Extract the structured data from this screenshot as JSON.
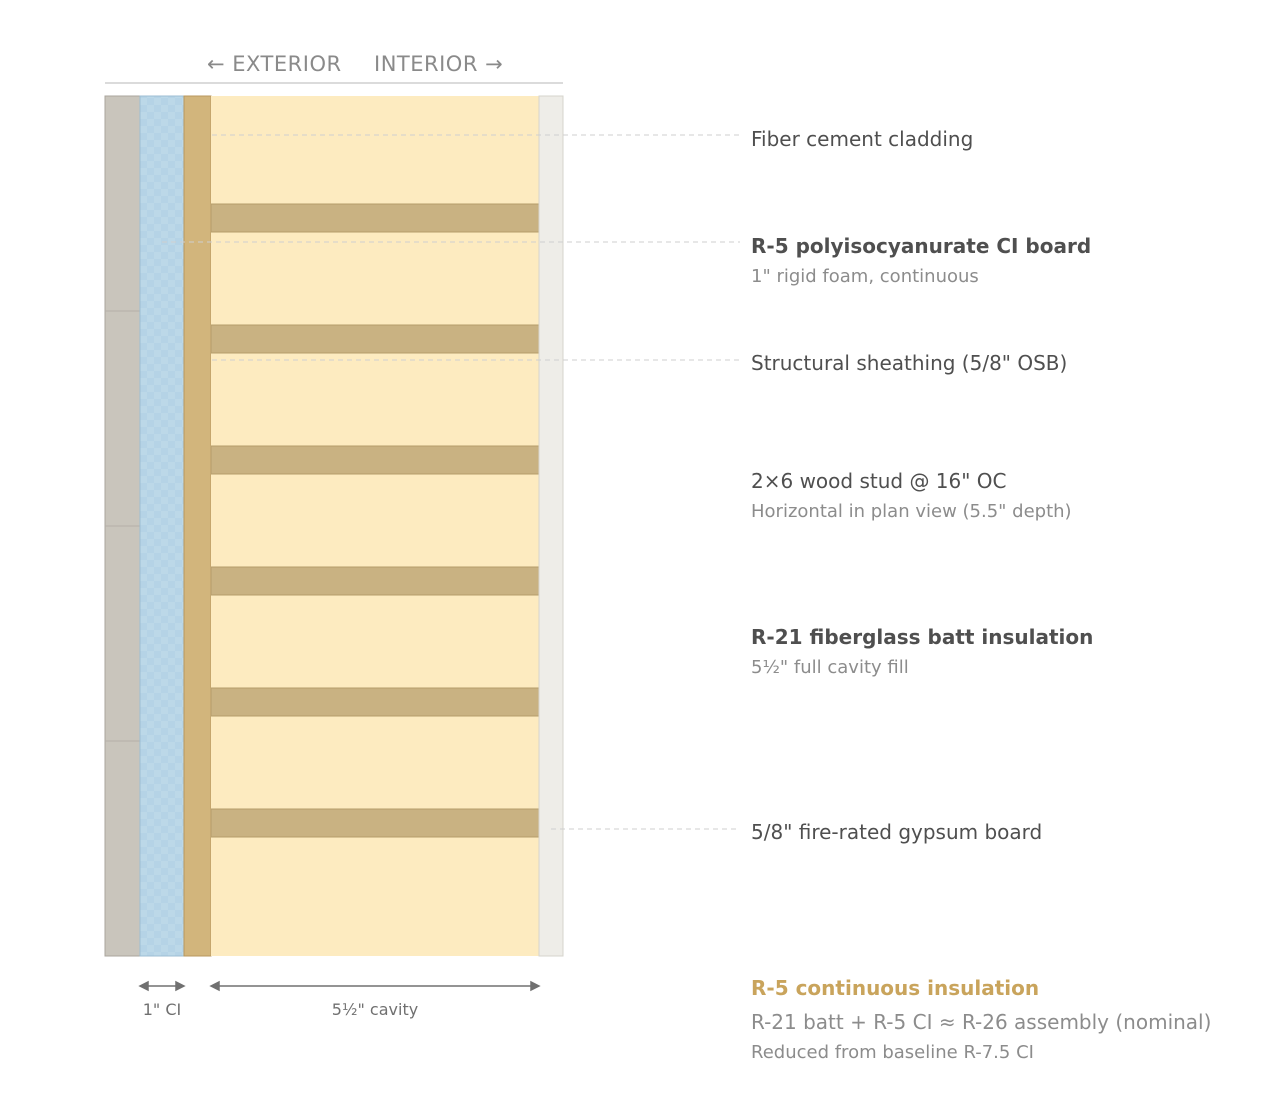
{
  "header": {
    "exterior": "← EXTERIOR",
    "interior": "INTERIOR →"
  },
  "colors": {
    "cladding": "#c9c5bc",
    "foam": "#b5d3e6",
    "sheathing": "#d2b57c",
    "batt": "#fdebc0",
    "stud": "#c9b282",
    "gypsum": "#eeede8",
    "accent": "#c9a45c"
  },
  "callouts": [
    {
      "title": "Fiber cement cladding",
      "bold": false,
      "subtitle": ""
    },
    {
      "title": "R-5 polyisocyanurate CI board",
      "bold": true,
      "subtitle": "1\" rigid foam, continuous"
    },
    {
      "title": "Structural sheathing (5/8\" OSB)",
      "bold": false,
      "subtitle": ""
    },
    {
      "title": "2×6 wood stud @ 16\" OC",
      "bold": false,
      "subtitle": "Horizontal in plan view (5.5\" depth)"
    },
    {
      "title": "R-21 fiberglass batt insulation",
      "bold": true,
      "subtitle": "5½\" full cavity fill"
    },
    {
      "title": "5/8\" fire-rated gypsum board",
      "bold": false,
      "subtitle": ""
    }
  ],
  "dimensions": {
    "ci": "1\" CI",
    "cavity": "5½\" cavity"
  },
  "summary": {
    "heading": "R-5 continuous insulation",
    "assembly": "R-21 batt + R-5 CI ≈ R-26 assembly (nominal)",
    "note": "Reduced from baseline R-7.5 CI"
  }
}
